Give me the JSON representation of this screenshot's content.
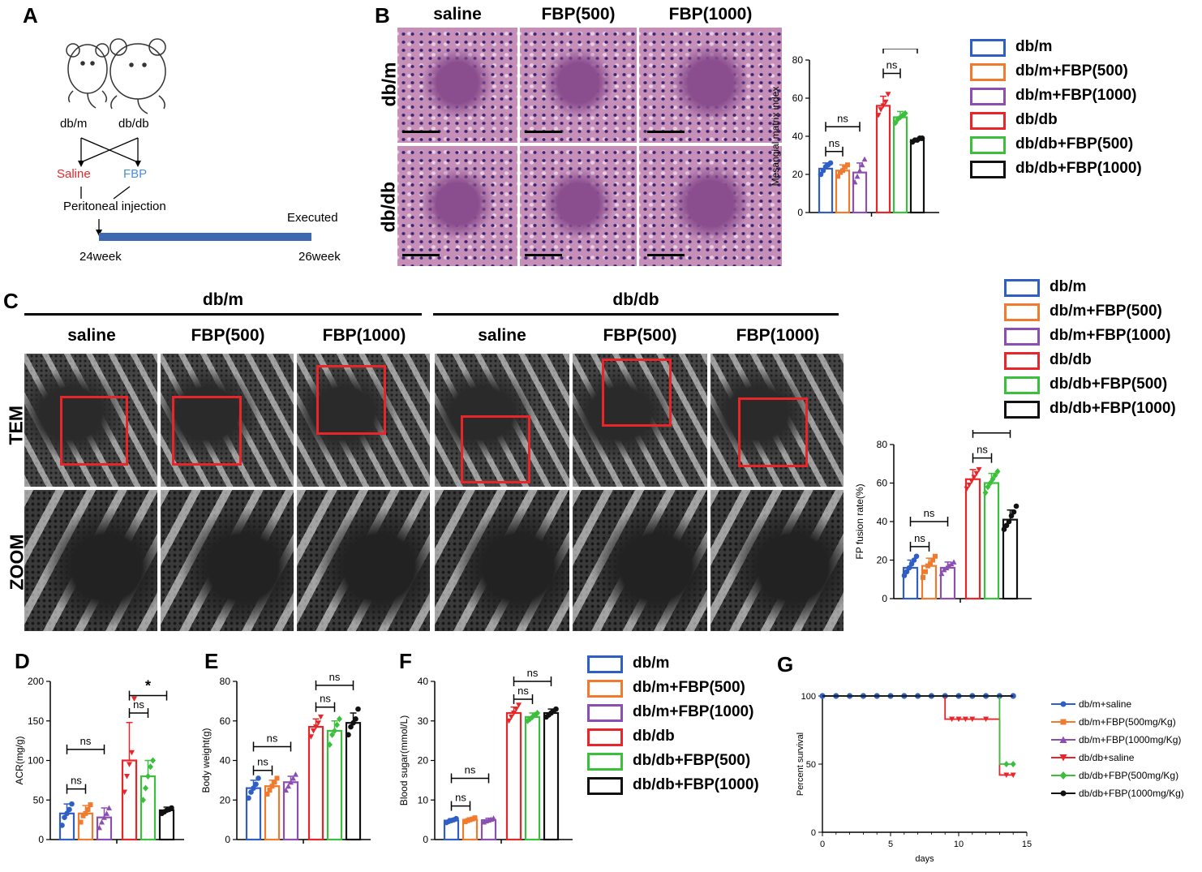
{
  "panels": {
    "A": {
      "label": "A",
      "left_mouse": "db/m",
      "right_mouse": "db/db",
      "saline": "Saline",
      "fbp": "FBP",
      "injection": "Peritoneal injection",
      "executed": "Executed",
      "start_week": "24week",
      "end_week": "26week",
      "colors": {
        "saline": "#e8262a",
        "fbp": "#4a90d9",
        "bar": "#3e68b0"
      }
    },
    "B": {
      "label": "B",
      "col_titles": [
        "saline",
        "FBP(500)",
        "FBP(1000)"
      ],
      "row_labels": [
        "db/m",
        "db/db"
      ]
    },
    "C": {
      "label": "C",
      "group_titles": [
        "db/m",
        "db/db"
      ],
      "col_titles": [
        "saline",
        "FBP(500)",
        "FBP(1000)",
        "saline",
        "FBP(500)",
        "FBP(1000)"
      ],
      "row_labels": [
        "TEM",
        "ZOOM"
      ]
    },
    "D": {
      "label": "D"
    },
    "E": {
      "label": "E"
    },
    "F": {
      "label": "F"
    },
    "G": {
      "label": "G"
    }
  },
  "legend_groups": [
    "db/m",
    "db/m+FBP(500)",
    "db/m+FBP(1000)",
    "db/db",
    "db/db+FBP(500)",
    "db/db+FBP(1000)"
  ],
  "group_colors": [
    "#2f5fc4",
    "#f07a2e",
    "#8a4fb0",
    "#e8262a",
    "#3cbf3c",
    "#111111"
  ],
  "chart_data": [
    {
      "id": "B",
      "type": "bar",
      "ylabel": "Mesangial matrix index",
      "ylim": [
        0,
        80
      ],
      "yticks": [
        0,
        20,
        40,
        60,
        80
      ],
      "groups": [
        "db/m",
        "db/m+FBP(500)",
        "db/m+FBP(1000)",
        "db/db",
        "db/db+FBP(500)",
        "db/db+FBP(1000)"
      ],
      "values": [
        23,
        22,
        21,
        56,
        50,
        38
      ],
      "errors": [
        3,
        3,
        5,
        5,
        3,
        1
      ],
      "points": [
        [
          20,
          22,
          24,
          25,
          26
        ],
        [
          19,
          21,
          22,
          24,
          25
        ],
        [
          16,
          19,
          22,
          25,
          28
        ],
        [
          51,
          54,
          56,
          58,
          62
        ],
        [
          47,
          49,
          50,
          51,
          52
        ],
        [
          37,
          38,
          38,
          39,
          39
        ]
      ],
      "annotations": [
        {
          "text": "ns",
          "g1": 0,
          "g2": 1,
          "y": 32
        },
        {
          "text": "ns",
          "g1": 0,
          "g2": 2,
          "y": 45
        },
        {
          "text": "ns",
          "g1": 3,
          "g2": 4,
          "y": 73
        },
        {
          "text": "*",
          "g1": 3,
          "g2": 5,
          "y": 86
        }
      ]
    },
    {
      "id": "C",
      "type": "bar",
      "ylabel": "FP fusion rate(%)",
      "ylim": [
        0,
        80
      ],
      "yticks": [
        0,
        20,
        40,
        60,
        80
      ],
      "groups": [
        "db/m",
        "db/m+FBP(500)",
        "db/m+FBP(1000)",
        "db/db",
        "db/db+FBP(500)",
        "db/db+FBP(1000)"
      ],
      "values": [
        16,
        17,
        16,
        62,
        60,
        41
      ],
      "errors": [
        4,
        4,
        3,
        5,
        5,
        5
      ],
      "points": [
        [
          12,
          14,
          16,
          18,
          20,
          22
        ],
        [
          11,
          14,
          17,
          18,
          20,
          22
        ],
        [
          13,
          15,
          16,
          17,
          18,
          19
        ],
        [
          57,
          59,
          61,
          63,
          65,
          67
        ],
        [
          55,
          58,
          60,
          62,
          64,
          66
        ],
        [
          36,
          38,
          40,
          43,
          45,
          48
        ]
      ],
      "annotations": [
        {
          "text": "ns",
          "g1": 0,
          "g2": 1,
          "y": 27
        },
        {
          "text": "ns",
          "g1": 0,
          "g2": 2,
          "y": 40
        },
        {
          "text": "ns",
          "g1": 3,
          "g2": 4,
          "y": 73
        },
        {
          "text": "*",
          "g1": 3,
          "g2": 5,
          "y": 86
        }
      ]
    },
    {
      "id": "D",
      "type": "bar",
      "ylabel": "ACR(mg/g)",
      "ylim": [
        0,
        200
      ],
      "yticks": [
        0,
        50,
        100,
        150,
        200
      ],
      "groups": [
        "db/m",
        "db/m+FBP(500)",
        "db/m+FBP(1000)",
        "db/db",
        "db/db+FBP(500)",
        "db/db+FBP(1000)"
      ],
      "values": [
        33,
        33,
        28,
        100,
        80,
        37
      ],
      "errors": [
        12,
        10,
        12,
        48,
        20,
        4
      ],
      "points": [
        [
          18,
          28,
          33,
          38,
          45
        ],
        [
          22,
          30,
          33,
          38,
          44
        ],
        [
          15,
          22,
          28,
          33,
          40
        ],
        [
          60,
          80,
          95,
          110,
          178
        ],
        [
          50,
          65,
          80,
          92,
          100
        ],
        [
          33,
          35,
          37,
          38,
          40
        ]
      ],
      "annotations": [
        {
          "text": "ns",
          "g1": 0,
          "g2": 1,
          "y": 64
        },
        {
          "text": "ns",
          "g1": 0,
          "g2": 2,
          "y": 114
        },
        {
          "text": "ns",
          "g1": 3,
          "g2": 4,
          "y": 160
        },
        {
          "text": "*",
          "g1": 3,
          "g2": 5,
          "y": 182
        }
      ]
    },
    {
      "id": "E",
      "type": "bar",
      "ylabel": "Body weight(g)",
      "ylim": [
        0,
        80
      ],
      "yticks": [
        0,
        20,
        40,
        60,
        80
      ],
      "groups": [
        "db/m",
        "db/m+FBP(500)",
        "db/m+FBP(1000)",
        "db/db",
        "db/db+FBP(500)",
        "db/db+FBP(1000)"
      ],
      "values": [
        26,
        27,
        29,
        57,
        55,
        59
      ],
      "errors": [
        4,
        3,
        3,
        4,
        5,
        5
      ],
      "points": [
        [
          21,
          24,
          26,
          28,
          31
        ],
        [
          23,
          25,
          27,
          29,
          31
        ],
        [
          25,
          27,
          29,
          31,
          33
        ],
        [
          52,
          55,
          57,
          59,
          62
        ],
        [
          48,
          53,
          55,
          58,
          61
        ],
        [
          53,
          57,
          59,
          61,
          66
        ]
      ],
      "annotations": [
        {
          "text": "ns",
          "g1": 0,
          "g2": 1,
          "y": 35
        },
        {
          "text": "ns",
          "g1": 0,
          "g2": 2,
          "y": 47
        },
        {
          "text": "ns",
          "g1": 3,
          "g2": 4,
          "y": 67
        },
        {
          "text": "ns",
          "g1": 3,
          "g2": 5,
          "y": 78
        }
      ]
    },
    {
      "id": "F",
      "type": "bar",
      "ylabel": "Blood sugar(mmol/L)",
      "ylim": [
        0,
        40
      ],
      "yticks": [
        0,
        10,
        20,
        30,
        40
      ],
      "groups": [
        "db/m",
        "db/m+FBP(500)",
        "db/m+FBP(1000)",
        "db/db",
        "db/db+FBP(500)",
        "db/db+FBP(1000)"
      ],
      "values": [
        4.8,
        5.0,
        4.9,
        32,
        31,
        32
      ],
      "errors": [
        0.5,
        0.5,
        0.5,
        1.5,
        1,
        1
      ],
      "points": [
        [
          4.3,
          4.6,
          4.8,
          5.0,
          5.3
        ],
        [
          4.5,
          4.8,
          5.0,
          5.2,
          5.5
        ],
        [
          4.4,
          4.7,
          4.9,
          5.1,
          5.4
        ],
        [
          30,
          31,
          32,
          33,
          34
        ],
        [
          30,
          30.5,
          31,
          31.5,
          32
        ],
        [
          31,
          31.5,
          32,
          32.5,
          33
        ]
      ],
      "annotations": [
        {
          "text": "ns",
          "g1": 0,
          "g2": 1,
          "y": 8.5
        },
        {
          "text": "ns",
          "g1": 0,
          "g2": 2,
          "y": 15.5
        },
        {
          "text": "ns",
          "g1": 3,
          "g2": 4,
          "y": 35.5
        },
        {
          "text": "ns",
          "g1": 3,
          "g2": 5,
          "y": 40
        }
      ]
    },
    {
      "id": "G",
      "type": "line",
      "xlabel": "days",
      "ylabel": "Percent survival",
      "xlim": [
        0,
        15
      ],
      "ylim": [
        0,
        100
      ],
      "xticks": [
        0,
        5,
        10,
        15
      ],
      "yticks": [
        0,
        50,
        100
      ],
      "series": [
        {
          "name": "db/m+saline",
          "color": "#2f5fc4",
          "marker": "circle",
          "x": [
            0,
            1,
            2,
            3,
            4,
            5,
            6,
            7,
            8,
            9,
            10,
            11,
            12,
            13,
            14
          ],
          "y": [
            100,
            100,
            100,
            100,
            100,
            100,
            100,
            100,
            100,
            100,
            100,
            100,
            100,
            100,
            100
          ]
        },
        {
          "name": "db/m+FBP(500mg/Kg)",
          "color": "#f07a2e",
          "marker": "square",
          "x": [
            0,
            14
          ],
          "y": [
            100,
            100
          ]
        },
        {
          "name": "db/m+FBP(1000mg/Kg)",
          "color": "#8a4fb0",
          "marker": "triangle-up",
          "x": [
            0,
            14
          ],
          "y": [
            100,
            100
          ]
        },
        {
          "name": "db/db+saline",
          "color": "#e8262a",
          "marker": "triangle-down",
          "x": [
            0,
            9,
            9.5,
            10,
            10.5,
            11,
            12,
            13,
            13.5,
            14
          ],
          "y": [
            100,
            83,
            83,
            83,
            83,
            83,
            83,
            42,
            42,
            42
          ],
          "step": true
        },
        {
          "name": "db/db+FBP(500mg/Kg)",
          "color": "#3cbf3c",
          "marker": "diamond",
          "x": [
            0,
            13,
            13.5,
            14
          ],
          "y": [
            100,
            50,
            50,
            50
          ],
          "step": true
        },
        {
          "name": "db/db+FBP(1000mg/Kg)",
          "color": "#111111",
          "marker": "circle",
          "x": [
            0,
            14
          ],
          "y": [
            100,
            100
          ]
        }
      ]
    }
  ]
}
